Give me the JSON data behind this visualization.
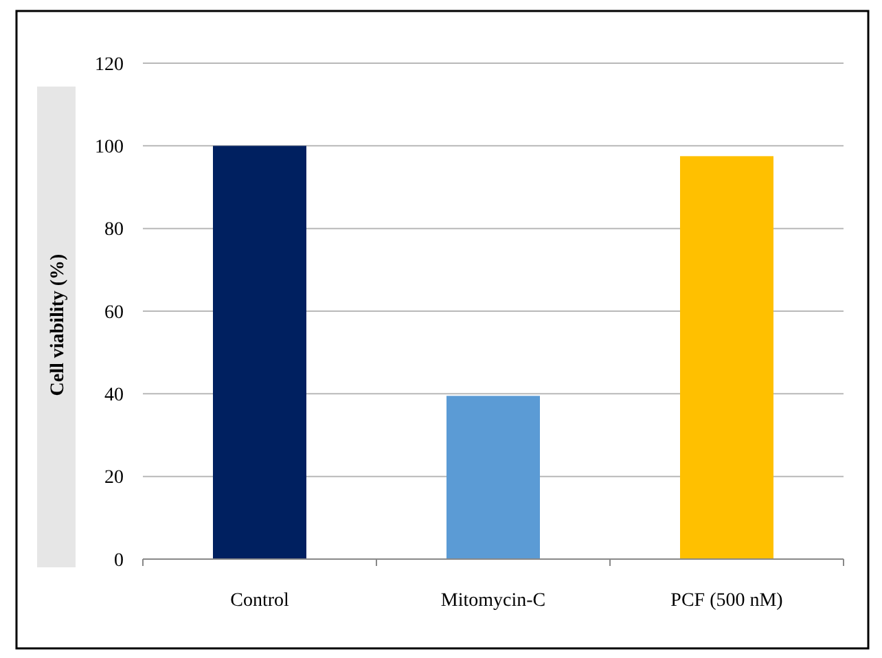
{
  "chart_data": {
    "type": "bar",
    "ylabel": "Cell viability (%)",
    "categories": [
      "Control",
      "Mitomycin-C",
      "PCF (500 nM)"
    ],
    "values": [
      100,
      39.5,
      97.5
    ],
    "colors": [
      "#002060",
      "#5b9bd5",
      "#ffc000"
    ],
    "ylim": [
      0,
      120
    ],
    "yticks": [
      0,
      20,
      40,
      60,
      80,
      100,
      120
    ],
    "grid": "y"
  }
}
